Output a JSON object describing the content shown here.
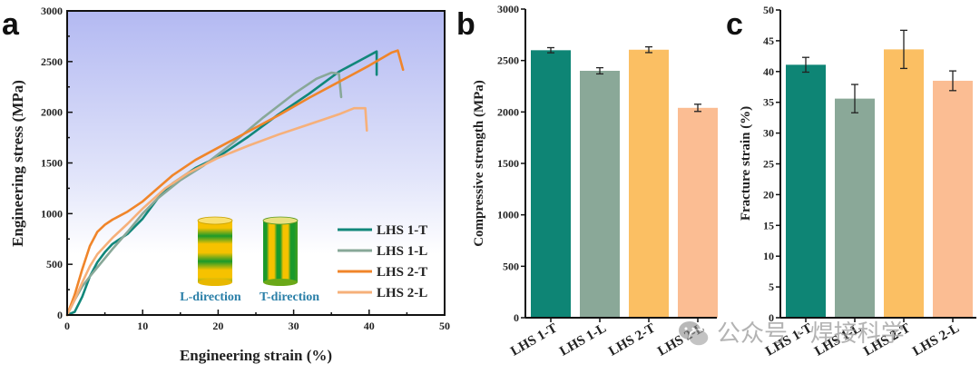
{
  "panels": {
    "a": {
      "label": "a"
    },
    "b": {
      "label": "b"
    },
    "c": {
      "label": "c"
    }
  },
  "inset": {
    "l_direction": "L-direction",
    "t_direction": "T-direction",
    "stripe_colors": {
      "yellow": "#f6c200",
      "green": "#1a9a2a"
    }
  },
  "watermark": {
    "text": "公众号 · 焊接科学",
    "icon": "wechat-icon"
  },
  "chart_data": [
    {
      "type": "line",
      "title": "",
      "xlabel": "Engineering strain (%)",
      "ylabel": "Engineering stress (MPa)",
      "xlim": [
        0,
        50
      ],
      "ylim": [
        0,
        3000
      ],
      "xticks": [
        "0",
        "10",
        "20",
        "30",
        "40",
        "50"
      ],
      "yticks": [
        "0",
        "500",
        "1000",
        "1500",
        "2000",
        "2500",
        "3000"
      ],
      "grid": false,
      "background": "gradient light-blue (top) to white (bottom)",
      "legend_position": "bottom-right",
      "series": [
        {
          "name": "LHS 1-T",
          "color": "#11877a",
          "x": [
            0,
            1,
            2,
            3,
            4,
            5,
            6,
            8,
            10,
            12,
            14,
            17,
            20,
            24,
            28,
            32,
            36,
            39,
            41,
            41,
            41
          ],
          "y": [
            0,
            30,
            180,
            380,
            520,
            620,
            700,
            800,
            950,
            1150,
            1300,
            1450,
            1560,
            1760,
            1980,
            2180,
            2400,
            2520,
            2600,
            2600,
            2370
          ]
        },
        {
          "name": "LHS 1-L",
          "color": "#88a898",
          "x": [
            0,
            1,
            2,
            3,
            4,
            6,
            8,
            10,
            12,
            15,
            18,
            22,
            26,
            30,
            33,
            35,
            36,
            36.3
          ],
          "y": [
            0,
            150,
            280,
            380,
            470,
            650,
            820,
            1000,
            1150,
            1330,
            1470,
            1700,
            1950,
            2180,
            2330,
            2390,
            2380,
            2150
          ]
        },
        {
          "name": "LHS 2-T",
          "color": "#f0852a",
          "x": [
            0,
            1,
            2,
            3,
            4,
            5,
            6,
            8,
            10,
            12,
            14,
            17,
            20,
            24,
            28,
            32,
            36,
            40,
            43,
            43.8,
            44.5
          ],
          "y": [
            0,
            200,
            450,
            680,
            820,
            890,
            940,
            1020,
            1120,
            1250,
            1380,
            1530,
            1650,
            1810,
            1970,
            2140,
            2300,
            2460,
            2590,
            2610,
            2420
          ]
        },
        {
          "name": "LHS 2-L",
          "color": "#f6b07a",
          "x": [
            0,
            1,
            2,
            3,
            4,
            6,
            8,
            10,
            13,
            16,
            20,
            24,
            28,
            32,
            36,
            38,
            39.5,
            39.7
          ],
          "y": [
            0,
            150,
            320,
            480,
            600,
            760,
            900,
            1050,
            1250,
            1400,
            1550,
            1670,
            1780,
            1880,
            1980,
            2040,
            2040,
            1820
          ]
        }
      ]
    },
    {
      "type": "bar",
      "title": "",
      "xlabel": "",
      "ylabel": "Compressive strength (MPa)",
      "categories": [
        "LHS 1-T",
        "LHS 1-L",
        "LHS 2-T",
        "LHS 2-L"
      ],
      "values": [
        2600,
        2400,
        2605,
        2040
      ],
      "errors": [
        25,
        30,
        28,
        35
      ],
      "colors": [
        "#0e8575",
        "#8aa898",
        "#fbbf63",
        "#fbbd93"
      ],
      "ylim": [
        0,
        3000
      ],
      "yticks": [
        "0",
        "500",
        "1000",
        "1500",
        "2000",
        "2500",
        "3000"
      ],
      "grid": false
    },
    {
      "type": "bar",
      "title": "",
      "xlabel": "",
      "ylabel": "Fracture strain (%)",
      "categories": [
        "LHS 1-T",
        "LHS 1-L",
        "LHS 2-T",
        "LHS 2-L"
      ],
      "values": [
        41.1,
        35.6,
        43.6,
        38.5
      ],
      "errors": [
        1.2,
        2.3,
        3.1,
        1.6
      ],
      "colors": [
        "#0e8575",
        "#8aa898",
        "#fbbf63",
        "#fbbd93"
      ],
      "ylim": [
        0,
        50
      ],
      "yticks": [
        "0",
        "5",
        "10",
        "15",
        "20",
        "25",
        "30",
        "35",
        "40",
        "45",
        "50"
      ],
      "grid": false
    }
  ]
}
